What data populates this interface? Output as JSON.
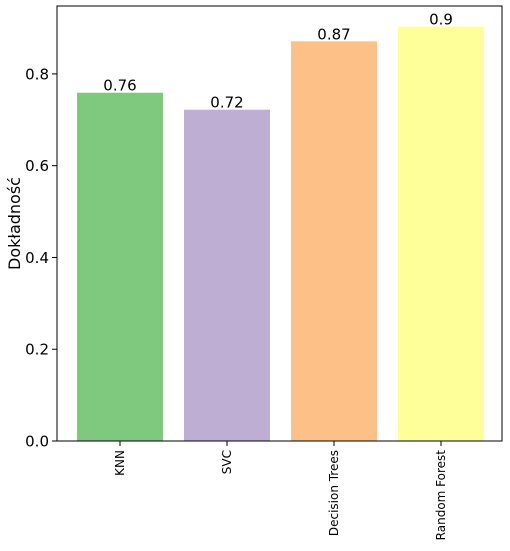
{
  "chart_data": {
    "type": "bar",
    "categories": [
      "KNN",
      "SVC",
      "Decision Trees",
      "Random Forest"
    ],
    "values": [
      0.76,
      0.72,
      0.87,
      0.9
    ],
    "value_labels": [
      "0.76",
      "0.72",
      "0.87",
      "0.9"
    ],
    "bar_values": [
      0.759,
      0.722,
      0.871,
      0.903
    ],
    "colors": [
      "#7fc97f",
      "#beaed4",
      "#fdc086",
      "#ffff99"
    ],
    "title": "",
    "xlabel": "",
    "ylabel": "Dokładność",
    "ylim": [
      0,
      0.948
    ],
    "yticks": [
      0.0,
      0.2,
      0.4,
      0.6,
      0.8
    ],
    "ytick_labels": [
      "0.0",
      "0.2",
      "0.4",
      "0.6",
      "0.8"
    ],
    "grid": false,
    "legend": "none",
    "xtick_rotation": "vertical"
  }
}
